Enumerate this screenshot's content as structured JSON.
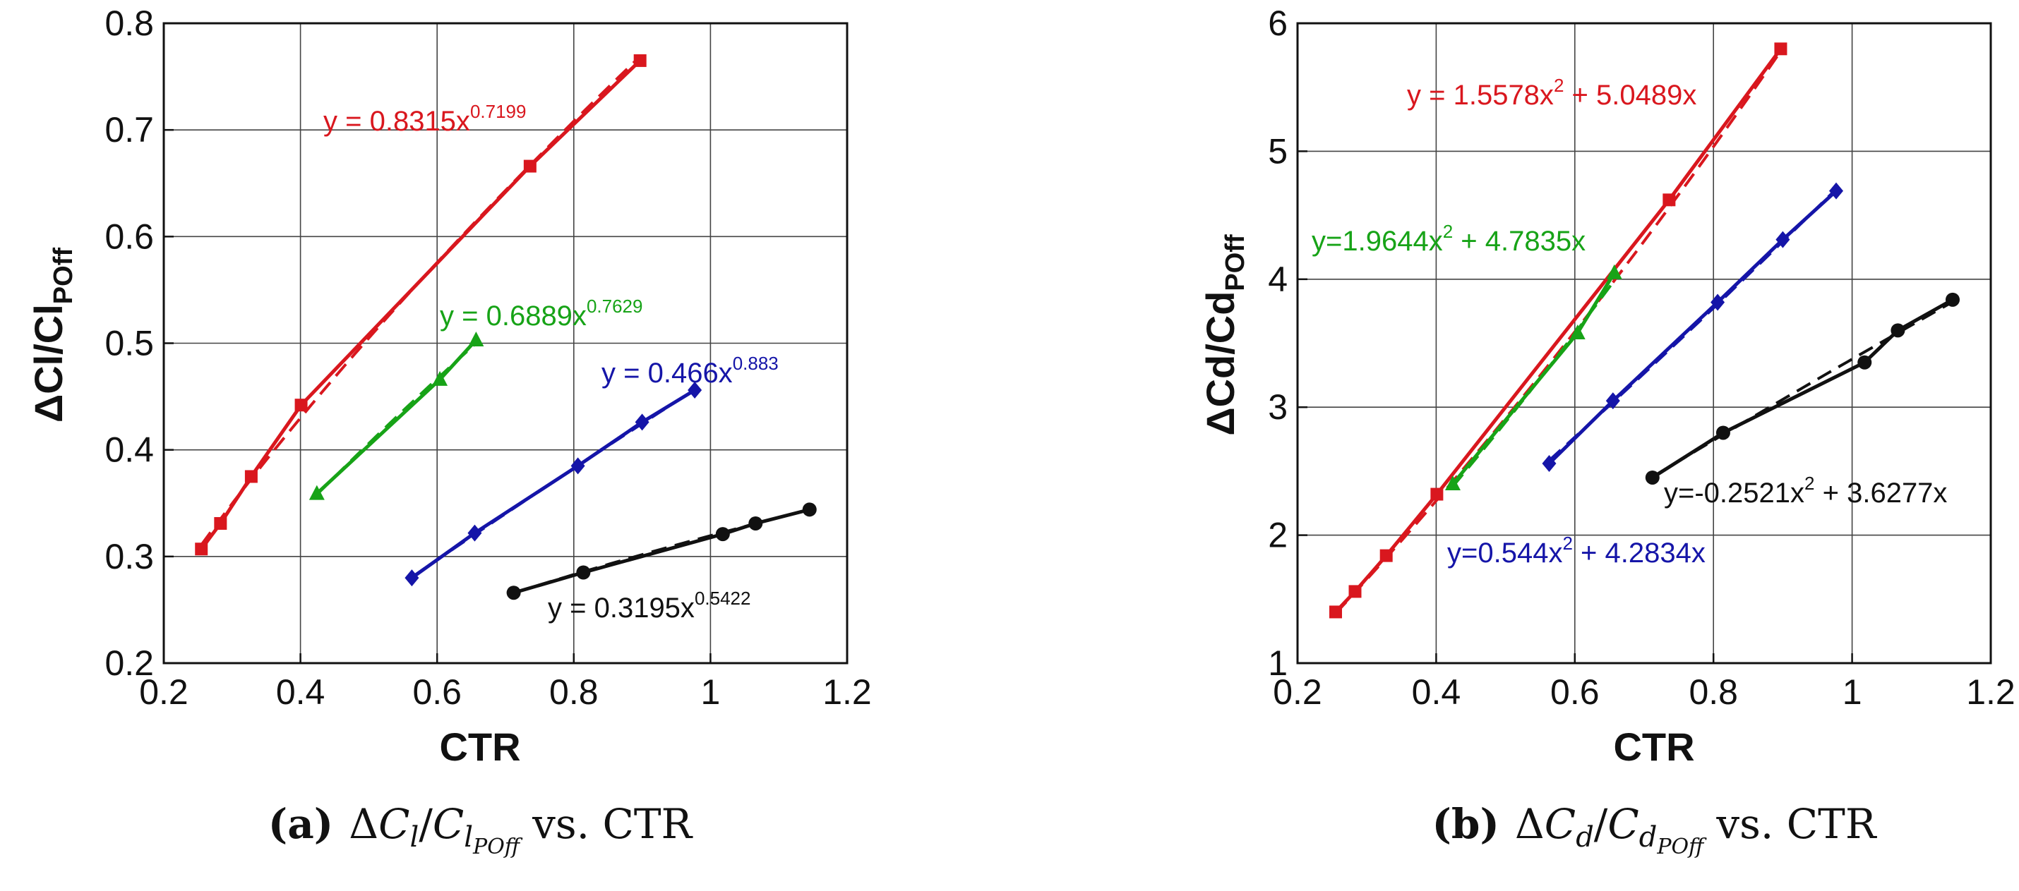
{
  "chart_data": [
    {
      "type": "line",
      "xlabel": "CTR",
      "ylabel": "ΔCl/Cl",
      "ylabel_sub": "POff",
      "xlim": [
        0.2,
        1.2
      ],
      "ylim": [
        0.2,
        0.8
      ],
      "xticks": [
        "0.2",
        "0.4",
        "0.6",
        "0.8",
        "1",
        "1.2"
      ],
      "yticks": [
        "0.2",
        "0.3",
        "0.4",
        "0.5",
        "0.6",
        "0.7",
        "0.8"
      ],
      "grid": true,
      "caption": {
        "letter": "(a)",
        "delta": "Δ",
        "C": "C",
        "sub": "l",
        "slash": "/",
        "C2": "C",
        "sub2": "l",
        "subsub2": "POff",
        "suffix": "vs. CTR"
      },
      "series": [
        {
          "name": "red",
          "color": "#d9171e",
          "marker": "square",
          "x": [
            0.255,
            0.283,
            0.328,
            0.401,
            0.736,
            0.897
          ],
          "y": [
            0.307,
            0.331,
            0.375,
            0.442,
            0.666,
            0.765
          ],
          "fit": {
            "label": "y = 0.8315x",
            "exp": "0.7199",
            "a": 0.8315,
            "b": 0.7199
          }
        },
        {
          "name": "green",
          "color": "#17a317",
          "marker": "triangle",
          "x": [
            0.424,
            0.604,
            0.657
          ],
          "y": [
            0.359,
            0.466,
            0.503
          ],
          "fit": {
            "label": "y = 0.6889x",
            "exp": "0.7629",
            "a": 0.6889,
            "b": 0.7629
          }
        },
        {
          "name": "blue",
          "color": "#1515a8",
          "marker": "diamond",
          "x": [
            0.563,
            0.655,
            0.806,
            0.9,
            0.977
          ],
          "y": [
            0.28,
            0.322,
            0.385,
            0.426,
            0.456
          ],
          "fit": {
            "label": "y = 0.466x",
            "exp": "0.883",
            "a": 0.466,
            "b": 0.883
          }
        },
        {
          "name": "black",
          "color": "#111111",
          "marker": "circle",
          "x": [
            0.712,
            0.814,
            1.018,
            1.066,
            1.145
          ],
          "y": [
            0.266,
            0.285,
            0.321,
            0.331,
            0.344
          ],
          "fit": {
            "label": "y = 0.3195x",
            "exp": "0.5422",
            "a": 0.3195,
            "b": 0.5422
          }
        }
      ]
    },
    {
      "type": "line",
      "xlabel": "CTR",
      "ylabel": "ΔCd/Cd",
      "ylabel_sub": "POff",
      "xlim": [
        0.2,
        1.2
      ],
      "ylim": [
        1,
        6
      ],
      "xticks": [
        "0.2",
        "0.4",
        "0.6",
        "0.8",
        "1",
        "1.2"
      ],
      "yticks": [
        "1",
        "2",
        "3",
        "4",
        "5",
        "6"
      ],
      "grid": true,
      "caption": {
        "letter": "(b)",
        "delta": "Δ",
        "C": "C",
        "sub": "d",
        "slash": "/",
        "C2": "C",
        "sub2": "d",
        "subsub2": "POff",
        "suffix": "vs. CTR"
      },
      "series": [
        {
          "name": "red",
          "color": "#d9171e",
          "marker": "square",
          "x": [
            0.255,
            0.283,
            0.328,
            0.401,
            0.736,
            0.897
          ],
          "y": [
            1.4,
            1.56,
            1.84,
            2.32,
            4.62,
            5.8
          ],
          "fit": {
            "label": "y = 1.5578x",
            "exp": "2",
            "tail": " + 5.0489x",
            "c2": 1.5578,
            "c1": 5.0489
          }
        },
        {
          "name": "green",
          "color": "#17a317",
          "marker": "triangle",
          "x": [
            0.424,
            0.604,
            0.657
          ],
          "y": [
            2.4,
            3.58,
            4.05
          ],
          "fit": {
            "label": "y=1.9644x",
            "exp": "2",
            "tail": " + 4.7835x",
            "c2": 1.9644,
            "c1": 4.7835
          }
        },
        {
          "name": "blue",
          "color": "#1515a8",
          "marker": "diamond",
          "x": [
            0.563,
            0.655,
            0.806,
            0.9,
            0.977
          ],
          "y": [
            2.56,
            3.05,
            3.82,
            4.31,
            4.69
          ],
          "fit": {
            "label": "y=0.544x",
            "exp": "2",
            "tail": " + 4.2834x",
            "c2": 0.544,
            "c1": 4.2834
          }
        },
        {
          "name": "black",
          "color": "#111111",
          "marker": "circle",
          "x": [
            0.712,
            0.814,
            1.018,
            1.066,
            1.145
          ],
          "y": [
            2.45,
            2.8,
            3.35,
            3.6,
            3.84
          ],
          "fit": {
            "label": "y=-0.2521x",
            "exp": "2",
            "tail": " + 3.6277x",
            "c2": -0.2521,
            "c1": 3.6277
          }
        }
      ]
    }
  ]
}
